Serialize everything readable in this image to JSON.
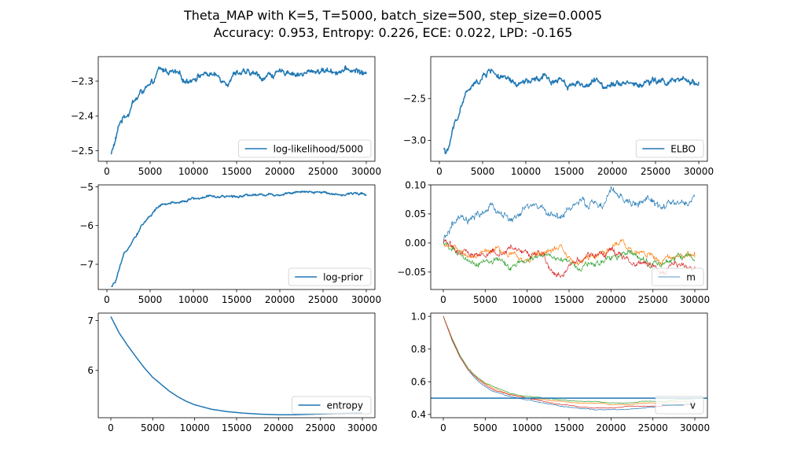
{
  "figure": {
    "title_line1": "Theta_MAP with K=5, T=5000, batch_size=500, step_size=0.0005",
    "title_line2": "Accuracy: 0.953, Entropy: 0.226, ECE: 0.022, LPD: -0.165"
  },
  "colors": {
    "c0": "#1f77b4",
    "c1": "#ff7f0e",
    "c2": "#2ca02c",
    "c3": "#d62728"
  },
  "chart_data": [
    {
      "type": "line",
      "id": "loglik",
      "xlim": [
        -1000,
        31000
      ],
      "ylim": [
        -2.53,
        -2.23
      ],
      "xticks": [
        0,
        5000,
        10000,
        15000,
        20000,
        25000,
        30000
      ],
      "xtick_labels": [
        "0",
        "5000",
        "10000",
        "15000",
        "20000",
        "25000",
        "30000"
      ],
      "yticks": [
        -2.5,
        -2.4,
        -2.3
      ],
      "ytick_labels": [
        "−2.5",
        "−2.4",
        "−2.3"
      ],
      "legend": {
        "position": "lower-right",
        "labels": [
          "log-likelihood/5000"
        ]
      },
      "series": [
        {
          "name": "log-likelihood/5000",
          "color": "#1f77b4",
          "width": 1.5,
          "x": [
            500,
            1000,
            1500,
            2000,
            2500,
            3000,
            3500,
            4000,
            4500,
            5000,
            5500,
            6000,
            7000,
            8000,
            9000,
            10000,
            11000,
            12000,
            13000,
            14000,
            15000,
            16000,
            17000,
            18000,
            19000,
            20000,
            21000,
            22000,
            23000,
            24000,
            25000,
            26000,
            27000,
            28000,
            29000,
            30000
          ],
          "y": [
            -2.51,
            -2.47,
            -2.42,
            -2.4,
            -2.39,
            -2.36,
            -2.35,
            -2.33,
            -2.32,
            -2.32,
            -2.3,
            -2.27,
            -2.27,
            -2.28,
            -2.3,
            -2.29,
            -2.28,
            -2.28,
            -2.29,
            -2.3,
            -2.27,
            -2.28,
            -2.28,
            -2.29,
            -2.28,
            -2.28,
            -2.27,
            -2.28,
            -2.28,
            -2.27,
            -2.27,
            -2.27,
            -2.27,
            -2.27,
            -2.27,
            -2.28
          ],
          "noise": 0.008
        }
      ]
    },
    {
      "type": "line",
      "id": "elbo",
      "xlim": [
        -1000,
        31000
      ],
      "ylim": [
        -3.25,
        -2.0
      ],
      "xticks": [
        0,
        5000,
        10000,
        15000,
        20000,
        25000,
        30000
      ],
      "xtick_labels": [
        "0",
        "5000",
        "10000",
        "15000",
        "20000",
        "25000",
        "30000"
      ],
      "yticks": [
        -3.0,
        -2.5
      ],
      "ytick_labels": [
        "−3.0",
        "−2.5"
      ],
      "legend": {
        "position": "lower-right",
        "labels": [
          "ELBO"
        ]
      },
      "series": [
        {
          "name": "ELBO",
          "color": "#1f77b4",
          "width": 1.5,
          "x": [
            500,
            1000,
            1500,
            2000,
            2500,
            3000,
            3500,
            4000,
            4500,
            5000,
            5500,
            6000,
            7000,
            8000,
            9000,
            10000,
            11000,
            12000,
            13000,
            14000,
            15000,
            16000,
            17000,
            18000,
            19000,
            20000,
            21000,
            22000,
            23000,
            24000,
            25000,
            26000,
            27000,
            28000,
            29000,
            30000
          ],
          "y": [
            -3.1,
            -3.15,
            -2.9,
            -2.75,
            -2.6,
            -2.45,
            -2.4,
            -2.35,
            -2.3,
            -2.25,
            -2.2,
            -2.15,
            -2.25,
            -2.3,
            -2.35,
            -2.3,
            -2.3,
            -2.25,
            -2.3,
            -2.25,
            -2.35,
            -2.3,
            -2.35,
            -2.3,
            -2.35,
            -2.3,
            -2.3,
            -2.3,
            -2.35,
            -2.3,
            -2.3,
            -2.3,
            -2.3,
            -2.3,
            -2.3,
            -2.3
          ],
          "noise": 0.035
        }
      ]
    },
    {
      "type": "line",
      "id": "logprior",
      "xlim": [
        -1000,
        31000
      ],
      "ylim": [
        -7.65,
        -4.95
      ],
      "xticks": [
        0,
        5000,
        10000,
        15000,
        20000,
        25000,
        30000
      ],
      "xtick_labels": [
        "0",
        "5000",
        "10000",
        "15000",
        "20000",
        "25000",
        "30000"
      ],
      "yticks": [
        -7,
        -6,
        -5
      ],
      "ytick_labels": [
        "−7",
        "−6",
        "−5"
      ],
      "legend": {
        "position": "lower-right",
        "labels": [
          "log-prior"
        ]
      },
      "series": [
        {
          "name": "log-prior",
          "color": "#1f77b4",
          "width": 1.5,
          "x": [
            500,
            1000,
            1500,
            2000,
            2500,
            3000,
            3500,
            4000,
            5000,
            6000,
            7000,
            8000,
            9000,
            10000,
            11000,
            12000,
            13000,
            14000,
            15000,
            16000,
            17000,
            18000,
            19000,
            20000,
            21000,
            22000,
            23000,
            24000,
            25000,
            26000,
            27000,
            28000,
            29000,
            30000
          ],
          "y": [
            -7.6,
            -7.45,
            -7.1,
            -6.75,
            -6.55,
            -6.35,
            -6.2,
            -6.0,
            -5.75,
            -5.5,
            -5.45,
            -5.4,
            -5.35,
            -5.3,
            -5.3,
            -5.2,
            -5.3,
            -5.25,
            -5.25,
            -5.2,
            -5.2,
            -5.2,
            -5.2,
            -5.2,
            -5.15,
            -5.15,
            -5.15,
            -5.15,
            -5.15,
            -5.15,
            -5.2,
            -5.2,
            -5.15,
            -5.2
          ],
          "noise": 0.03
        }
      ]
    },
    {
      "type": "line",
      "id": "m",
      "xlim": [
        -1500,
        31500
      ],
      "ylim": [
        -0.08,
        0.1
      ],
      "xticks": [
        0,
        5000,
        10000,
        15000,
        20000,
        25000,
        30000
      ],
      "xtick_labels": [
        "0",
        "5000",
        "10000",
        "15000",
        "20000",
        "25000",
        "30000"
      ],
      "yticks": [
        -0.05,
        0.0,
        0.05,
        0.1
      ],
      "ytick_labels": [
        "−0.05",
        "0.00",
        "0.05",
        "0.10"
      ],
      "legend": {
        "position": "lower-right",
        "labels": [
          "m"
        ]
      },
      "series": [
        {
          "name": "m",
          "color": "#1f77b4",
          "width": 0.7,
          "x": [
            0,
            1000,
            2000,
            3000,
            4000,
            5000,
            6000,
            7000,
            8000,
            9000,
            10000,
            11000,
            12000,
            13000,
            14000,
            15000,
            16000,
            17000,
            18000,
            19000,
            20000,
            21000,
            22000,
            23000,
            24000,
            25000,
            26000,
            27000,
            28000,
            29000,
            30000
          ],
          "y": [
            0.0,
            0.03,
            0.04,
            0.035,
            0.045,
            0.055,
            0.06,
            0.05,
            0.04,
            0.045,
            0.06,
            0.065,
            0.055,
            0.05,
            0.045,
            0.06,
            0.07,
            0.065,
            0.07,
            0.06,
            0.09,
            0.08,
            0.07,
            0.065,
            0.075,
            0.07,
            0.06,
            0.065,
            0.07,
            0.065,
            0.08
          ],
          "noise": 0.006
        },
        {
          "color": "#ff7f0e",
          "width": 0.7,
          "x": [
            0,
            2000,
            4000,
            6000,
            8000,
            10000,
            12000,
            14000,
            16000,
            18000,
            20000,
            21000,
            22000,
            24000,
            26000,
            28000,
            30000
          ],
          "y": [
            0.0,
            -0.015,
            -0.025,
            -0.01,
            -0.02,
            -0.03,
            -0.015,
            -0.01,
            -0.035,
            -0.02,
            -0.01,
            0.005,
            -0.01,
            -0.02,
            -0.025,
            -0.02,
            -0.025
          ],
          "noise": 0.005
        },
        {
          "color": "#2ca02c",
          "width": 0.7,
          "x": [
            0,
            2000,
            4000,
            6000,
            8000,
            10000,
            12000,
            14000,
            16000,
            18000,
            20000,
            22000,
            24000,
            26000,
            28000,
            30000
          ],
          "y": [
            0.0,
            -0.02,
            -0.035,
            -0.03,
            -0.045,
            -0.025,
            -0.02,
            -0.025,
            -0.04,
            -0.035,
            -0.03,
            -0.01,
            -0.03,
            -0.04,
            -0.02,
            -0.03
          ],
          "noise": 0.005
        },
        {
          "color": "#d62728",
          "width": 0.7,
          "x": [
            0,
            2000,
            4000,
            6000,
            8000,
            10000,
            12000,
            13000,
            14000,
            15000,
            16000,
            18000,
            20000,
            22000,
            24000,
            26000,
            28000,
            30000
          ],
          "y": [
            0.0,
            -0.015,
            -0.02,
            -0.015,
            -0.01,
            -0.02,
            -0.02,
            -0.05,
            -0.06,
            -0.04,
            -0.03,
            -0.02,
            -0.015,
            -0.03,
            -0.035,
            -0.05,
            -0.035,
            -0.04
          ],
          "noise": 0.005
        }
      ]
    },
    {
      "type": "line",
      "id": "entropy",
      "xlim": [
        -1500,
        31500
      ],
      "ylim": [
        5.05,
        7.15
      ],
      "xticks": [
        0,
        5000,
        10000,
        15000,
        20000,
        25000,
        30000
      ],
      "xtick_labels": [
        "0",
        "5000",
        "10000",
        "15000",
        "20000",
        "25000",
        "30000"
      ],
      "yticks": [
        6,
        7
      ],
      "ytick_labels": [
        "6",
        "7"
      ],
      "legend": {
        "position": "lower-right",
        "labels": [
          "entropy"
        ]
      },
      "series": [
        {
          "name": "entropy",
          "color": "#1f77b4",
          "width": 1.5,
          "x": [
            0,
            1000,
            2000,
            3000,
            4000,
            5000,
            6000,
            7000,
            8000,
            9000,
            10000,
            12000,
            14000,
            16000,
            18000,
            20000,
            22000,
            24000,
            26000,
            28000,
            30000
          ],
          "y": [
            7.08,
            6.75,
            6.5,
            6.27,
            6.05,
            5.86,
            5.72,
            5.58,
            5.47,
            5.38,
            5.31,
            5.22,
            5.17,
            5.14,
            5.12,
            5.11,
            5.11,
            5.12,
            5.13,
            5.14,
            5.15
          ],
          "noise": 0.0
        }
      ]
    },
    {
      "type": "line",
      "id": "v",
      "xlim": [
        -1500,
        31500
      ],
      "ylim": [
        0.38,
        1.02
      ],
      "xticks": [
        0,
        5000,
        10000,
        15000,
        20000,
        25000,
        30000
      ],
      "xtick_labels": [
        "0",
        "5000",
        "10000",
        "15000",
        "20000",
        "25000",
        "30000"
      ],
      "yticks": [
        0.4,
        0.6,
        0.8,
        1.0
      ],
      "ytick_labels": [
        "0.4",
        "0.6",
        "0.8",
        "1.0"
      ],
      "legend": {
        "position": "lower-right",
        "labels": [
          "v"
        ]
      },
      "hline": {
        "y": 0.5,
        "color": "#1f77b4",
        "width": 1.5
      },
      "series": [
        {
          "name": "v",
          "color": "#1f77b4",
          "width": 0.7,
          "x": [
            0,
            1000,
            2000,
            3000,
            4000,
            5000,
            6000,
            8000,
            10000,
            12000,
            14000,
            16000,
            18000,
            20000,
            22000,
            24000,
            26000,
            28000,
            30000
          ],
          "y": [
            1.0,
            0.86,
            0.75,
            0.67,
            0.61,
            0.57,
            0.54,
            0.51,
            0.49,
            0.47,
            0.45,
            0.44,
            0.43,
            0.43,
            0.43,
            0.44,
            0.45,
            0.46,
            0.47
          ],
          "noise": 0.002
        },
        {
          "color": "#ff7f0e",
          "width": 0.7,
          "x": [
            0,
            1000,
            2000,
            3000,
            4000,
            5000,
            6000,
            8000,
            10000,
            12000,
            14000,
            16000,
            18000,
            20000,
            22000,
            24000,
            26000,
            28000,
            30000
          ],
          "y": [
            1.0,
            0.87,
            0.76,
            0.68,
            0.63,
            0.59,
            0.56,
            0.52,
            0.5,
            0.49,
            0.48,
            0.47,
            0.47,
            0.46,
            0.46,
            0.47,
            0.47,
            0.48,
            0.48
          ],
          "noise": 0.002
        },
        {
          "color": "#2ca02c",
          "width": 0.7,
          "x": [
            0,
            1000,
            2000,
            3000,
            4000,
            5000,
            6000,
            8000,
            10000,
            12000,
            14000,
            16000,
            18000,
            20000,
            22000,
            24000,
            26000,
            28000,
            30000
          ],
          "y": [
            1.0,
            0.87,
            0.76,
            0.68,
            0.63,
            0.59,
            0.57,
            0.53,
            0.51,
            0.5,
            0.49,
            0.48,
            0.48,
            0.47,
            0.47,
            0.48,
            0.48,
            0.49,
            0.49
          ],
          "noise": 0.002
        },
        {
          "color": "#d62728",
          "width": 0.7,
          "x": [
            0,
            1000,
            2000,
            3000,
            4000,
            5000,
            6000,
            8000,
            10000,
            12000,
            14000,
            16000,
            18000,
            20000,
            22000,
            24000,
            26000,
            28000,
            30000
          ],
          "y": [
            1.0,
            0.86,
            0.75,
            0.67,
            0.62,
            0.58,
            0.55,
            0.52,
            0.5,
            0.48,
            0.46,
            0.45,
            0.44,
            0.44,
            0.45,
            0.45,
            0.45,
            0.46,
            0.46
          ],
          "noise": 0.002
        }
      ]
    }
  ]
}
